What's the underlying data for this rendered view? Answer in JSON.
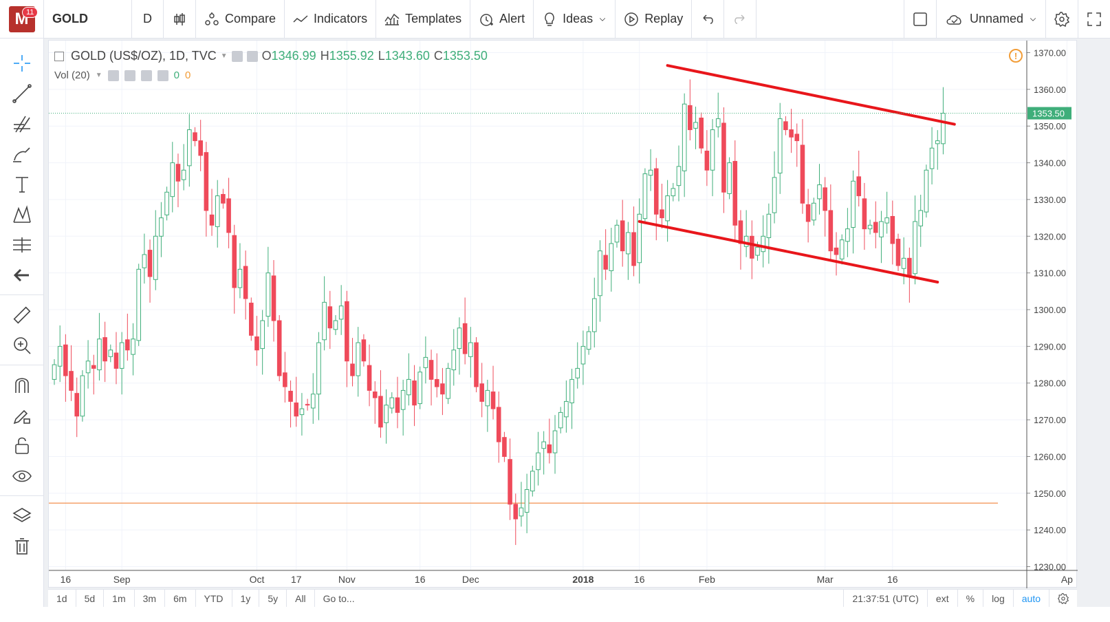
{
  "toolbar": {
    "badge_count": "11",
    "logo_letter": "M",
    "symbol": "GOLD",
    "interval": "D",
    "compare": "Compare",
    "indicators": "Indicators",
    "templates": "Templates",
    "alert": "Alert",
    "ideas": "Ideas",
    "replay": "Replay",
    "layout_name": "Unnamed"
  },
  "legend": {
    "title": "GOLD (US$/OZ), 1D, TVC",
    "o_label": "O",
    "o": "1346.99",
    "h_label": "H",
    "h": "1355.92",
    "l_label": "L",
    "l": "1343.60",
    "c_label": "C",
    "c": "1353.50",
    "vol_label": "Vol (20)",
    "vol_val1": "0",
    "vol_val2": "0"
  },
  "bottom": {
    "ranges": [
      "1d",
      "5d",
      "1m",
      "3m",
      "6m",
      "YTD",
      "1y",
      "5y",
      "All"
    ],
    "goto": "Go to...",
    "clock": "21:37:51 (UTC)",
    "ext": "ext",
    "pct": "%",
    "log": "log",
    "auto": "auto"
  },
  "colors": {
    "up": "#3fae7a",
    "down": "#ef4a5a",
    "trendline": "#e8161b",
    "hline": "#f4a26b",
    "price_tag": "#3fae7a"
  },
  "chart_data": {
    "type": "candlestick",
    "y_ticks": [
      1230,
      1240,
      1250,
      1260,
      1270,
      1280,
      1290,
      1300,
      1310,
      1320,
      1330,
      1340,
      1350,
      1360,
      1370
    ],
    "y_tick_labels": [
      "1230.00",
      "1240.00",
      "1250.00",
      "1260.00",
      "1270.00",
      "1280.00",
      "1290.00",
      "1300.00",
      "1310.00",
      "1320.00",
      "1330.00",
      "1340.00",
      "1350.00",
      "1360.00",
      "1370.00"
    ],
    "x_labels": [
      "16",
      "Sep",
      "Oct",
      "17",
      "Nov",
      "16",
      "Dec",
      "2018",
      "16",
      "Feb",
      "Mar",
      "16",
      "Ap"
    ],
    "x_label_index": [
      2,
      12,
      36,
      43,
      52,
      65,
      74,
      94,
      104,
      116,
      137,
      149,
      180
    ],
    "last_price": "1353.50",
    "hline_price": 1247.3,
    "trendlines": [
      {
        "from": {
          "i": 109,
          "price": 1366.5
        },
        "to": {
          "i": 160,
          "price": 1350.5
        }
      },
      {
        "from": {
          "i": 104,
          "price": 1324.0
        },
        "to": {
          "i": 157,
          "price": 1307.5
        }
      }
    ],
    "closes": [
      1285,
      1290,
      1282,
      1278,
      1271,
      1282,
      1286,
      1284,
      1292,
      1286,
      1289,
      1284,
      1291,
      1289,
      1292,
      1311,
      1315,
      1309,
      1320,
      1325,
      1332,
      1340,
      1335,
      1338,
      1349,
      1346,
      1342,
      1327,
      1323,
      1331,
      1329,
      1321,
      1306,
      1311,
      1303,
      1293,
      1289,
      1297,
      1310,
      1297,
      1282,
      1279,
      1275,
      1271,
      1273,
      1274,
      1277,
      1291,
      1302,
      1295,
      1297,
      1301,
      1286,
      1282,
      1291,
      1286,
      1278,
      1276,
      1268,
      1274,
      1276,
      1272,
      1278,
      1281,
      1274,
      1283,
      1287,
      1281,
      1279,
      1277,
      1284,
      1289,
      1295,
      1288,
      1291,
      1279,
      1275,
      1278,
      1273,
      1264,
      1260,
      1247,
      1243,
      1246,
      1251,
      1256,
      1261,
      1264,
      1261,
      1267,
      1272,
      1275,
      1281,
      1284,
      1290,
      1294,
      1303,
      1316,
      1311,
      1318,
      1323,
      1316,
      1321,
      1312,
      1326,
      1337,
      1338,
      1326,
      1325,
      1331,
      1333,
      1339,
      1356,
      1349,
      1351,
      1344,
      1338,
      1349,
      1352,
      1332,
      1340,
      1323,
      1318,
      1320,
      1314,
      1317,
      1320,
      1326,
      1336,
      1352,
      1349,
      1347,
      1346,
      1329,
      1324,
      1329,
      1334,
      1327,
      1316,
      1315,
      1319,
      1322,
      1335,
      1331,
      1322,
      1323,
      1321,
      1324,
      1325,
      1318,
      1312,
      1314,
      1309,
      1324,
      1327,
      1338,
      1344,
      1346,
      1353.5
    ]
  }
}
